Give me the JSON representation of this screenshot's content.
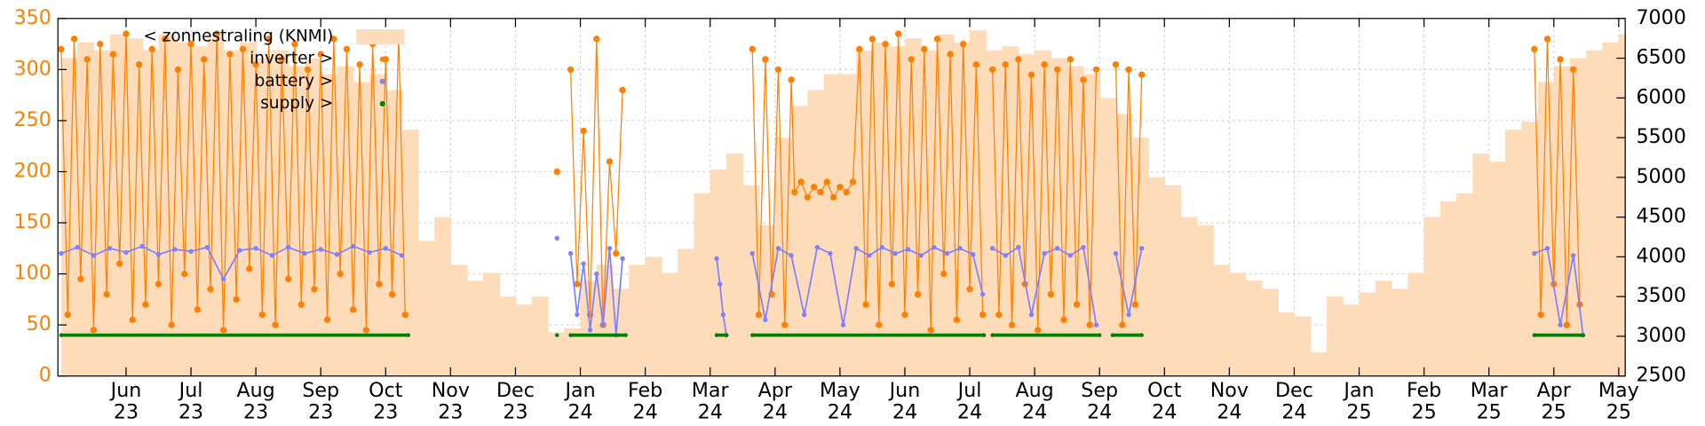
{
  "chart_data": {
    "type": "scatter",
    "xlim": [
      4.95,
      29.1
    ],
    "xticks": [
      {
        "value": 6,
        "label": "Jun\n23"
      },
      {
        "value": 7,
        "label": "Jul\n23"
      },
      {
        "value": 8,
        "label": "Aug\n23"
      },
      {
        "value": 9,
        "label": "Sep\n23"
      },
      {
        "value": 10,
        "label": "Oct\n23"
      },
      {
        "value": 11,
        "label": "Nov\n23"
      },
      {
        "value": 12,
        "label": "Dec\n23"
      },
      {
        "value": 13,
        "label": "Jan\n24"
      },
      {
        "value": 14,
        "label": "Feb\n24"
      },
      {
        "value": 15,
        "label": "Mar\n24"
      },
      {
        "value": 16,
        "label": "Apr\n24"
      },
      {
        "value": 17,
        "label": "May\n24"
      },
      {
        "value": 18,
        "label": "Jun\n24"
      },
      {
        "value": 19,
        "label": "Jul\n24"
      },
      {
        "value": 20,
        "label": "Aug\n24"
      },
      {
        "value": 21,
        "label": "Sep\n24"
      },
      {
        "value": 22,
        "label": "Oct\n24"
      },
      {
        "value": 23,
        "label": "Nov\n24"
      },
      {
        "value": 24,
        "label": "Dec\n24"
      },
      {
        "value": 25,
        "label": "Jan\n25"
      },
      {
        "value": 26,
        "label": "Feb\n25"
      },
      {
        "value": 27,
        "label": "Mar\n25"
      },
      {
        "value": 28,
        "label": "Apr\n25"
      },
      {
        "value": 29,
        "label": "May\n25"
      }
    ],
    "ylim": [
      0,
      350
    ],
    "yticks": [
      0,
      50,
      100,
      150,
      200,
      250,
      300,
      350
    ],
    "y2lim": [
      2500,
      7000
    ],
    "y2ticks": [
      2500,
      3000,
      3500,
      4000,
      4500,
      5000,
      5500,
      6000,
      6500,
      7000
    ],
    "grid": true,
    "legend": "upper left",
    "series": [
      {
        "name": "< zonnestraling (KNMI)",
        "type": "bar",
        "axis": "y2",
        "color": "#ffdcb9",
        "x": [
          5,
          5.25,
          5.5,
          5.75,
          6,
          6.25,
          6.5,
          6.75,
          7,
          7.25,
          7.5,
          7.75,
          8,
          8.25,
          8.5,
          8.75,
          9,
          9.25,
          9.5,
          9.75,
          10,
          10.25,
          10.5,
          10.75,
          11,
          11.25,
          11.5,
          11.75,
          12,
          12.25,
          12.5,
          12.75,
          13,
          13.25,
          13.5,
          13.75,
          14,
          14.25,
          14.5,
          14.75,
          15,
          15.25,
          15.5,
          15.75,
          16,
          16.25,
          16.5,
          16.75,
          17,
          17.25,
          17.5,
          17.75,
          18,
          18.25,
          18.5,
          18.75,
          19,
          19.25,
          19.5,
          19.75,
          20,
          20.25,
          20.5,
          20.75,
          21,
          21.25,
          21.5,
          21.75,
          22,
          22.25,
          22.5,
          22.75,
          23,
          23.25,
          23.5,
          23.75,
          24,
          24.25,
          24.5,
          24.75,
          25,
          25.25,
          25.5,
          25.75,
          26,
          26.25,
          26.5,
          26.75,
          27,
          27.25,
          27.5,
          27.75,
          28,
          28.25,
          28.5,
          28.75,
          29
        ],
        "values": [
          6500,
          6700,
          6600,
          6800,
          6750,
          6600,
          6800,
          6700,
          6650,
          6750,
          6600,
          6700,
          6500,
          6600,
          6400,
          6500,
          6300,
          6400,
          6200,
          6300,
          6100,
          5600,
          4200,
          4500,
          3900,
          3700,
          3800,
          3500,
          3400,
          3500,
          3050,
          3100,
          3700,
          3900,
          3600,
          3900,
          4000,
          3800,
          4100,
          4800,
          5100,
          5300,
          4900,
          4400,
          5500,
          5900,
          6100,
          6300,
          6300,
          6600,
          6700,
          6650,
          6750,
          6600,
          6800,
          6700,
          6850,
          6600,
          6650,
          6550,
          6600,
          6500,
          6400,
          6300,
          6000,
          5800,
          5500,
          5000,
          4900,
          4500,
          4400,
          3900,
          3800,
          3700,
          3600,
          3300,
          3250,
          2800,
          3500,
          3400,
          3550,
          3700,
          3600,
          3800,
          4500,
          4700,
          4800,
          5300,
          5200,
          5600,
          5700,
          6200,
          6400,
          6500,
          6600,
          6700,
          6800
        ]
      },
      {
        "name": "inverter >",
        "type": "scatter",
        "axis": "y",
        "color": "#ff8000",
        "x": [
          5,
          5.1,
          5.2,
          5.3,
          5.4,
          5.5,
          5.6,
          5.7,
          5.8,
          5.9,
          6,
          6.1,
          6.2,
          6.3,
          6.4,
          6.5,
          6.6,
          6.7,
          6.8,
          6.9,
          7,
          7.1,
          7.2,
          7.3,
          7.4,
          7.5,
          7.6,
          7.7,
          7.8,
          7.9,
          8,
          8.1,
          8.2,
          8.3,
          8.4,
          8.5,
          8.6,
          8.7,
          8.8,
          8.9,
          9,
          9.1,
          9.2,
          9.3,
          9.4,
          9.5,
          9.6,
          9.7,
          9.8,
          9.9,
          10,
          10.1,
          10.2,
          10.3,
          11.5,
          12.64,
          12.75,
          12.85,
          12.95,
          13.05,
          13.15,
          13.25,
          13.35,
          13.45,
          13.55,
          13.65,
          14.8,
          15.65,
          15.75,
          15.85,
          15.95,
          16.05,
          16.15,
          16.25,
          16.3,
          16.4,
          16.5,
          16.6,
          16.7,
          16.8,
          16.9,
          17,
          17.1,
          17.2,
          17.3,
          17.4,
          17.5,
          17.6,
          17.7,
          17.8,
          17.9,
          18,
          18.1,
          18.2,
          18.3,
          18.4,
          18.5,
          18.6,
          18.7,
          18.8,
          18.9,
          19,
          19.1,
          19.2,
          19.27,
          19.35,
          19.45,
          19.55,
          19.65,
          19.75,
          19.85,
          19.95,
          20.05,
          20.15,
          20.25,
          20.35,
          20.45,
          20.55,
          20.65,
          20.75,
          20.85,
          20.95,
          21.1,
          21.25,
          21.35,
          21.45,
          21.55,
          21.65,
          25,
          27.7,
          27.8,
          27.9,
          28,
          28.1,
          28.2,
          28.3,
          28.4
        ],
        "values": [
          320,
          60,
          330,
          95,
          310,
          45,
          325,
          80,
          315,
          110,
          335,
          55,
          305,
          70,
          320,
          90,
          330,
          50,
          300,
          100,
          325,
          65,
          310,
          85,
          335,
          45,
          315,
          75,
          320,
          105,
          305,
          60,
          330,
          50,
          310,
          95,
          325,
          70,
          300,
          85,
          315,
          55,
          330,
          100,
          320,
          65,
          305,
          45,
          325,
          90,
          310,
          80,
          335,
          60,
          null,
          200,
          null,
          300,
          90,
          240,
          60,
          330,
          50,
          210,
          120,
          280,
          null,
          320,
          60,
          310,
          80,
          300,
          50,
          290,
          180,
          190,
          175,
          185,
          180,
          190,
          175,
          185,
          180,
          190,
          320,
          70,
          330,
          50,
          325,
          90,
          335,
          60,
          310,
          80,
          320,
          45,
          330,
          100,
          315,
          55,
          325,
          85,
          305,
          60,
          null,
          300,
          60,
          305,
          50,
          310,
          90,
          295,
          45,
          305,
          80,
          300,
          55,
          310,
          70,
          290,
          50,
          300,
          null,
          305,
          50,
          300,
          70,
          295,
          null,
          320,
          60,
          330,
          90,
          310,
          50,
          300,
          70
        ]
      },
      {
        "name": "battery >",
        "type": "scatter",
        "axis": "y",
        "color": "#8080ff",
        "x": [
          5,
          5.25,
          5.5,
          5.75,
          6,
          6.25,
          6.5,
          6.75,
          7,
          7.25,
          7.5,
          7.75,
          8,
          8.25,
          8.5,
          8.75,
          9,
          9.25,
          9.5,
          9.75,
          10,
          10.25,
          11.5,
          12.64,
          12.75,
          12.85,
          12.95,
          13.05,
          13.15,
          13.25,
          13.35,
          13.45,
          13.55,
          13.65,
          14.8,
          15.1,
          15.15,
          15.2,
          15.25,
          15.4,
          15.65,
          15.85,
          16.05,
          16.25,
          16.45,
          16.65,
          16.85,
          17.05,
          17.25,
          17.45,
          17.65,
          17.85,
          18.05,
          18.25,
          18.45,
          18.65,
          18.85,
          19.05,
          19.2,
          19.27,
          19.35,
          19.55,
          19.75,
          19.95,
          20.15,
          20.35,
          20.55,
          20.75,
          20.95,
          21.1,
          21.25,
          21.45,
          21.65,
          25,
          27.7,
          27.9,
          28.1,
          28.3,
          28.45
        ],
        "values": [
          120,
          126,
          118,
          125,
          121,
          127,
          119,
          124,
          122,
          126,
          95,
          123,
          125,
          118,
          126,
          120,
          124,
          119,
          127,
          121,
          125,
          118,
          null,
          135,
          null,
          120,
          60,
          110,
          45,
          100,
          50,
          125,
          40,
          115,
          null,
          115,
          90,
          60,
          40,
          null,
          120,
          55,
          125,
          118,
          60,
          126,
          120,
          50,
          125,
          118,
          126,
          120,
          124,
          118,
          126,
          120,
          125,
          119,
          80,
          null,
          125,
          118,
          126,
          60,
          120,
          125,
          118,
          126,
          50,
          null,
          120,
          60,
          125,
          null,
          120,
          125,
          50,
          118,
          40
        ]
      },
      {
        "name": "supply >",
        "type": "scatter",
        "axis": "y",
        "color": "#008000",
        "x": [
          5,
          10.35,
          11,
          12.64,
          12.7,
          12.85,
          13.7,
          14.8,
          15.1,
          15.25,
          15.4,
          15.65,
          19.22,
          19.27,
          19.35,
          21,
          21.1,
          21.2,
          21.65,
          25,
          27.7,
          28.45
        ],
        "values": [
          40,
          40,
          null,
          40,
          null,
          40,
          40,
          null,
          40,
          40,
          null,
          40,
          40,
          null,
          40,
          40,
          null,
          40,
          40,
          null,
          40,
          40
        ]
      }
    ]
  }
}
